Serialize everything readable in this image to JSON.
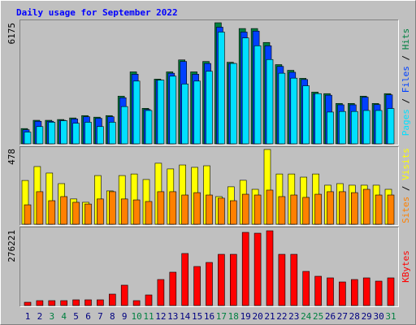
{
  "chart_data": {
    "type": "bar",
    "title": "Daily usage for September 2022",
    "categories": [
      "1",
      "2",
      "3",
      "4",
      "5",
      "6",
      "7",
      "8",
      "9",
      "10",
      "11",
      "12",
      "13",
      "14",
      "15",
      "16",
      "17",
      "18",
      "19",
      "20",
      "21",
      "22",
      "23",
      "24",
      "25",
      "26",
      "27",
      "28",
      "29",
      "30",
      "31"
    ],
    "category_colors": [
      "#000080",
      "#000080",
      "#008040",
      "#008040",
      "#000080",
      "#000080",
      "#000080",
      "#000080",
      "#000080",
      "#008040",
      "#008040",
      "#000080",
      "#000080",
      "#000080",
      "#000080",
      "#000080",
      "#008040",
      "#008040",
      "#000080",
      "#000080",
      "#000080",
      "#000080",
      "#000080",
      "#008040",
      "#008040",
      "#000080",
      "#000080",
      "#000080",
      "#000080",
      "#000080",
      "#008040"
    ],
    "legend_separator": " / ",
    "panels": [
      {
        "ylim": [
          0,
          6175
        ],
        "yticks": [
          6175
        ],
        "series": [
          {
            "name": "Hits",
            "color": "#008040",
            "values": [
              780,
              1200,
              1200,
              1240,
              1320,
              1440,
              1360,
              1440,
              2430,
              3670,
              1810,
              3300,
              3670,
              4280,
              3670,
              4200,
              6175,
              4160,
              5880,
              5880,
              5170,
              4040,
              3750,
              3340,
              2640,
              2560,
              2060,
              2060,
              2430,
              2060,
              2560
            ]
          },
          {
            "name": "Files",
            "color": "#0040ff",
            "values": [
              720,
              1150,
              1150,
              1200,
              1270,
              1380,
              1300,
              1380,
              2350,
              3550,
              1750,
              3250,
              3600,
              4200,
              3550,
              4100,
              5950,
              4100,
              5700,
              5750,
              5000,
              3950,
              3650,
              3280,
              2560,
              2480,
              1990,
              1990,
              2380,
              2000,
              2500
            ]
          },
          {
            "name": "Pages",
            "color": "#00e0ff",
            "values": [
              600,
              880,
              1100,
              1180,
              1050,
              1100,
              880,
              1100,
              1900,
              3200,
              1700,
              3250,
              3450,
              3050,
              3200,
              3700,
              5700,
              4100,
              5400,
              5000,
              4300,
              3600,
              3350,
              2960,
              2560,
              1620,
              1650,
              1650,
              1700,
              1700,
              1800
            ]
          }
        ]
      },
      {
        "ylim": [
          0,
          478
        ],
        "yticks": [
          478
        ],
        "series": [
          {
            "name": "Visits",
            "color": "#ffff00",
            "values": [
              277,
              365,
              324,
              257,
              160,
              139,
              308,
              211,
              308,
              318,
              283,
              386,
              350,
              375,
              360,
              370,
              175,
              237,
              278,
              221,
              473,
              318,
              318,
              298,
              318,
              247,
              257,
              247,
              247,
              247,
              221
            ]
          },
          {
            "name": "Sites",
            "color": "#ff8000",
            "values": [
              123,
              206,
              149,
              175,
              139,
              128,
              160,
              206,
              160,
              154,
              144,
              206,
              206,
              185,
              200,
              185,
              165,
              149,
              190,
              185,
              216,
              175,
              185,
              170,
              190,
              206,
              206,
              200,
              221,
              185,
              185
            ]
          }
        ]
      },
      {
        "ylim": [
          0,
          276221
        ],
        "yticks": [
          276221
        ],
        "series": [
          {
            "name": "KBytes",
            "color": "#ff0000",
            "values": [
              11900,
              17800,
              17800,
              17800,
              20800,
              20800,
              20800,
              41600,
              74300,
              17800,
              38600,
              95000,
              121800,
              190100,
              142600,
              157400,
              187100,
              187100,
              267300,
              264300,
              273200,
              187100,
              187100,
              124700,
              106900,
              101000,
              86100,
              95000,
              101000,
              89100,
              101000
            ]
          }
        ]
      }
    ]
  }
}
